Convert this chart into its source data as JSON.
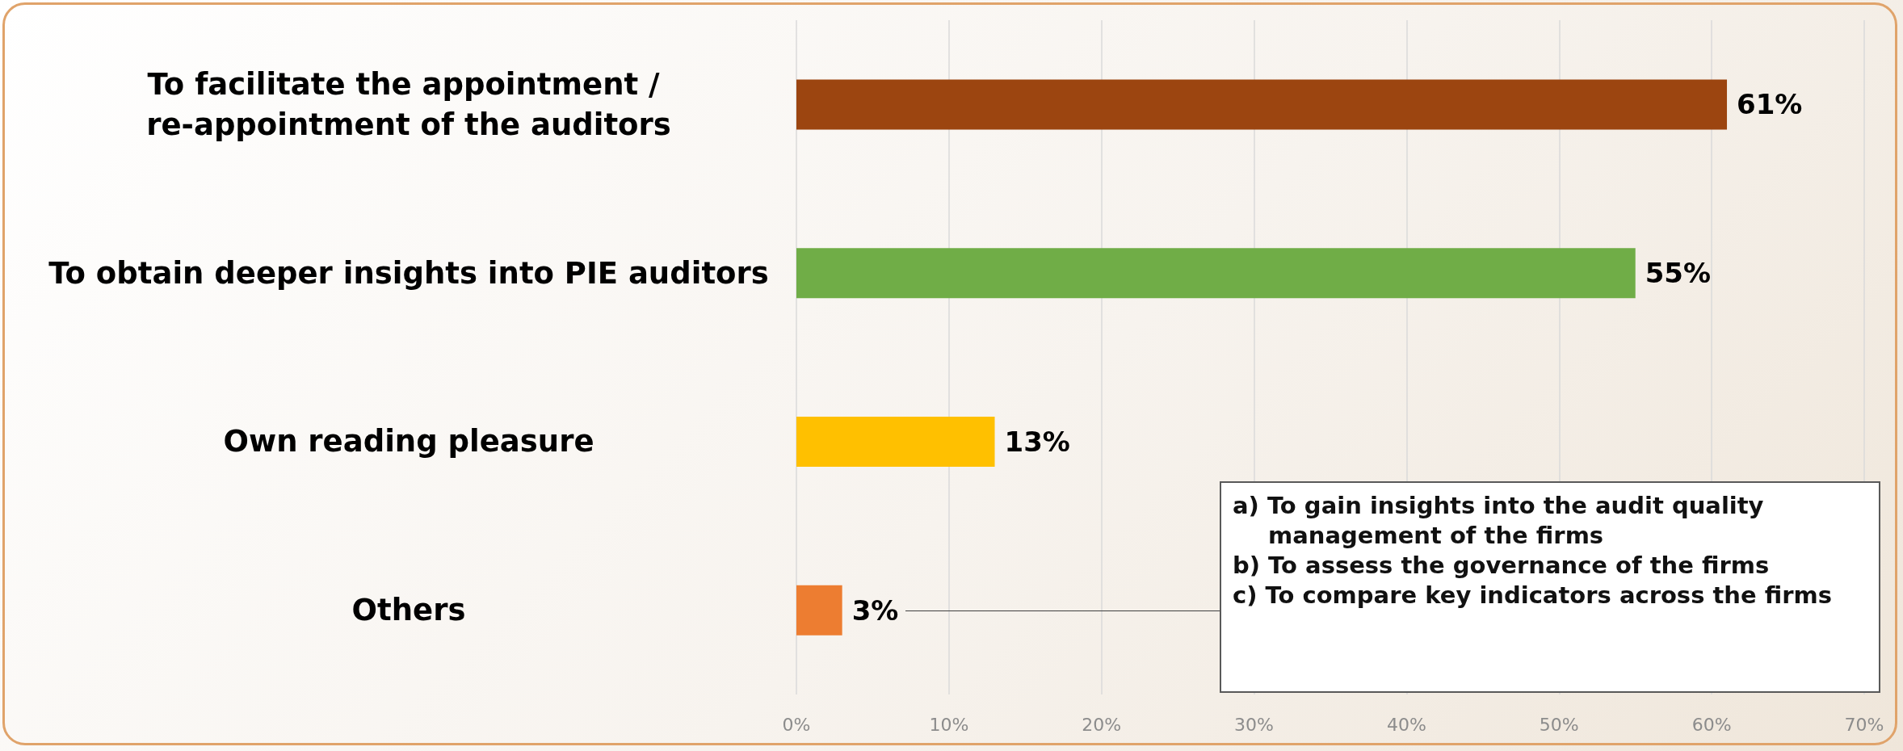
{
  "chart_data": {
    "type": "bar",
    "orientation": "horizontal",
    "categories": [
      "To facilitate the appointment / re-appointment of the auditors",
      "To obtain deeper insights into PIE auditors",
      "Own reading pleasure",
      "Others"
    ],
    "values": [
      61,
      55,
      13,
      3
    ],
    "colors": [
      "#9c4510",
      "#70ad47",
      "#ffc000",
      "#ed7d31"
    ],
    "value_labels": [
      "61%",
      "55%",
      "13%",
      "3%"
    ],
    "xlim": [
      0,
      70
    ],
    "xticks": [
      {
        "value": 0,
        "label": "0%"
      },
      {
        "value": 10,
        "label": "10%"
      },
      {
        "value": 20,
        "label": "20%"
      },
      {
        "value": 30,
        "label": "30%"
      },
      {
        "value": 40,
        "label": "40%"
      },
      {
        "value": 50,
        "label": "50%"
      },
      {
        "value": 60,
        "label": "60%"
      },
      {
        "value": 70,
        "label": "70%"
      }
    ],
    "grid": "x",
    "annotations": [
      "a) To gain insights into the audit quality management of the firms",
      "b) To assess the governance of the firms",
      "c) To compare key indicators across the firms"
    ]
  }
}
